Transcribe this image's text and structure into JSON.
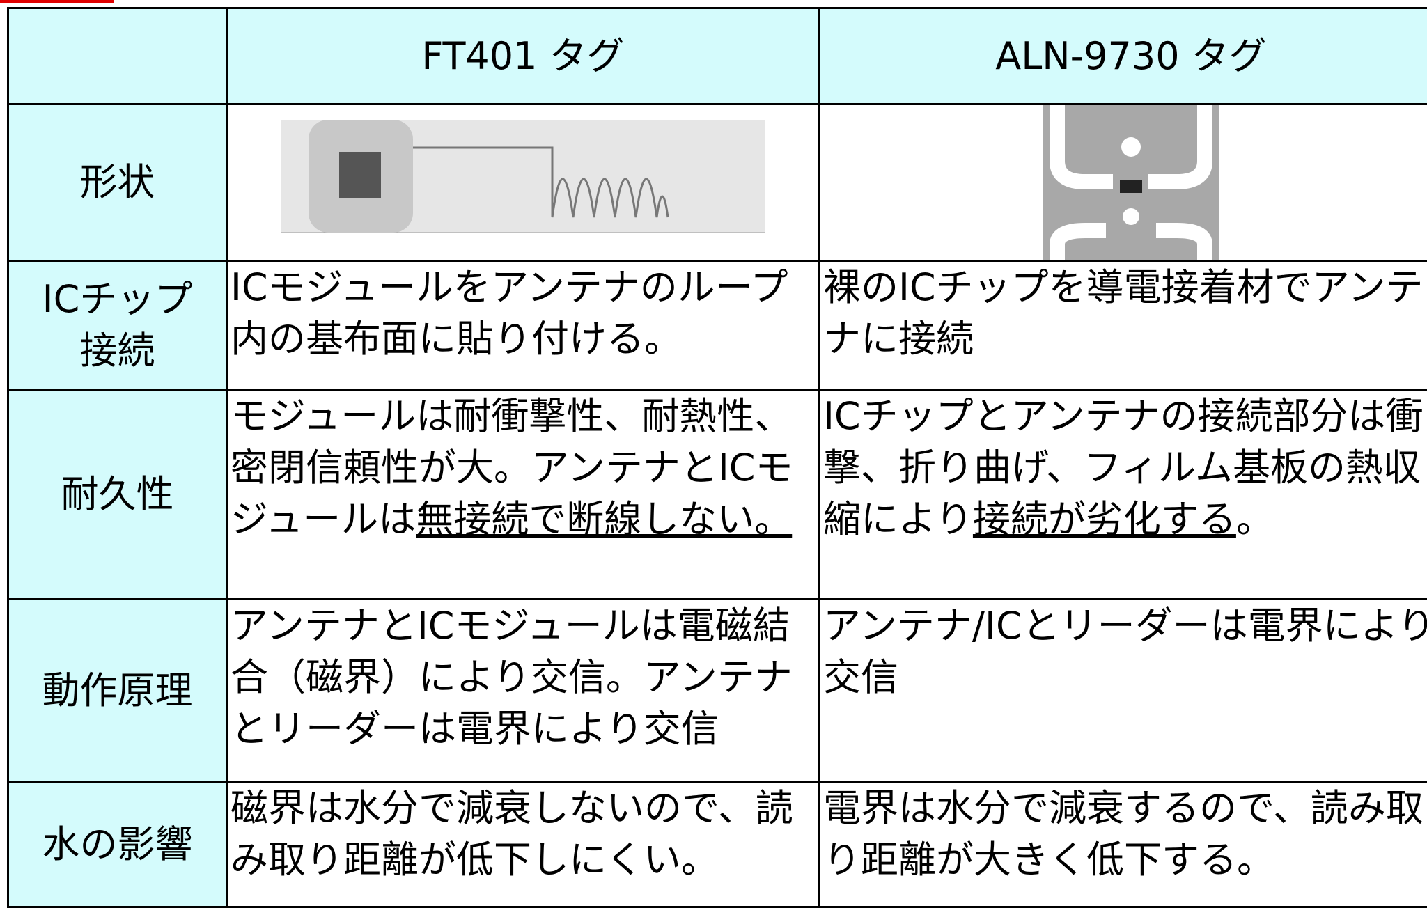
{
  "table": {
    "columns": [
      "FT401 タグ",
      "ALN-9730 タグ"
    ],
    "shape_label": "形状",
    "rows": [
      {
        "label": [
          "ICチップ",
          "接続"
        ],
        "cells": [
          [
            "ICモジュールをアンテナのループ内の基布面に貼り付ける。"
          ],
          [
            "裸のICチップを導電接着材でアンテナに接続"
          ]
        ]
      },
      {
        "label": [
          "耐久性"
        ],
        "cells": [
          [
            "モジュールは耐衝撃性、耐熱性、密閉信頼性が大。アンテナとICモジュールは",
            {
              "text": "無接続で断線しない。",
              "underline": true
            }
          ],
          [
            "ICチップとアンテナの接続部分は衝撃、折り曲げ、フィルム基板の熱収縮により",
            {
              "text": "接続が劣化する",
              "underline": true
            },
            "。"
          ]
        ]
      },
      {
        "label": [
          "動作原理"
        ],
        "cells": [
          [
            "アンテナとICモジュールは電磁結合（磁界）により交信。アンテナとリーダーは電界により交信"
          ],
          [
            "アンテナ/ICとリーダーは電界により交信"
          ]
        ]
      },
      {
        "label": [
          "水の影響"
        ],
        "cells": [
          [
            "磁界は水分で減衰しないので、読み取り距離が低下しにくい。"
          ],
          [
            "電界は水分で減衰するので、読み取り距離が大きく低下する。"
          ]
        ]
      }
    ]
  }
}
